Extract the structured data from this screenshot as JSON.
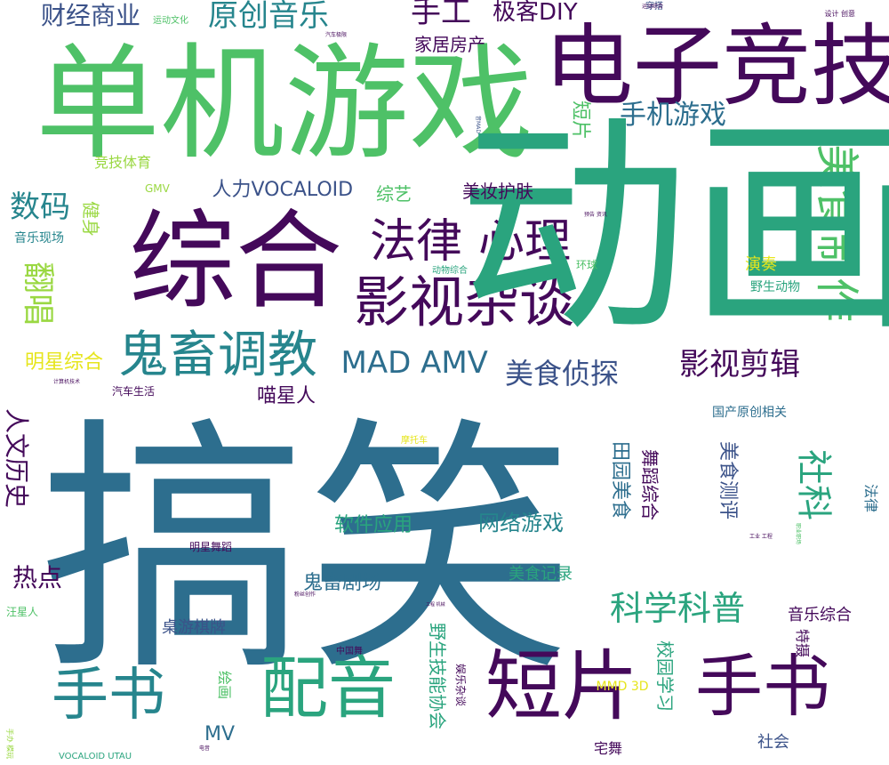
{
  "palette": {
    "c1": "#44095a",
    "c2": "#3b5289",
    "c3": "#2d6e8e",
    "c4": "#26858d",
    "c5": "#2aa47e",
    "c6": "#4ec167",
    "c7": "#9ad842",
    "c8": "#e6e51c"
  },
  "words": [
    "搞笑",
    "单机游戏",
    "电子竞技",
    "综合",
    "影视杂谈",
    "鬼畜调教",
    "法律",
    "心理",
    "手书",
    "短片",
    "配音",
    "手书",
    "原创音乐",
    "财经商业",
    "手工",
    "极客DIY",
    "家居房产",
    "手机游戏",
    "美食制作",
    "动画",
    "MAD AMV",
    "美食侦探",
    "影视剪辑",
    "科学科普",
    "翻唱",
    "数码",
    "人力VOCALOID",
    "综艺",
    "美妆护肤",
    "音乐现场",
    "健身",
    "明星综合",
    "人文历史",
    "喵星人",
    "软件应用",
    "网络游戏",
    "热点",
    "鬼畜剧场",
    "美食记录",
    "桌游棋牌",
    "音乐综合",
    "特摄",
    "绘画",
    "MMD 3D",
    "MV",
    "宅舞",
    "社会",
    "校园学习",
    "野生技能协会",
    "野生动物",
    "演奏",
    "环球",
    "动物综合",
    "竞技体育",
    "GMV",
    "短片",
    "汽车生活",
    "汪星人",
    "明星舞蹈",
    "中国舞",
    "娱乐杂谈",
    "VOCALOID UTAU",
    "田园美食",
    "舞蹈综合",
    "美食测评",
    "社科",
    "法律",
    "国产原创相关",
    "穿搭",
    "运动综合",
    "汽车极限",
    "运动文化",
    "职业职场",
    "计算机技术",
    "预告 资讯",
    "工程 机械",
    "工业 工程",
    "摩托车",
    "粉丝创作",
    "音MAD",
    "设计 创意",
    "手办 模玩",
    "电音",
    "时尚潮流",
    "智能出行",
    "鬼畜",
    "动物",
    "手办",
    "漫画",
    "科技",
    "星海",
    "乐评盘点",
    "说唱",
    "街舞",
    "古典"
  ]
}
